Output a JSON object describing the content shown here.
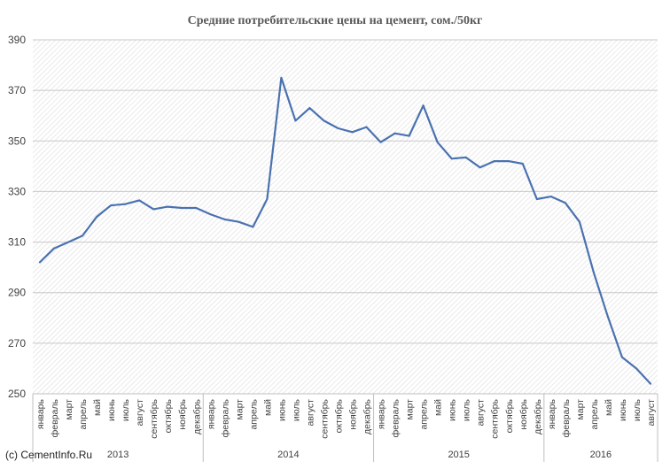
{
  "chart_data": {
    "type": "line",
    "title": "Средние потребительские цены на цемент, сом./50кг",
    "ylim": [
      250,
      390
    ],
    "yticks": [
      250,
      270,
      290,
      310,
      330,
      350,
      370,
      390
    ],
    "grid": true,
    "color": "#4a72b0",
    "categories": [
      "январь",
      "февраль",
      "март",
      "апрель",
      "май",
      "июнь",
      "июль",
      "август",
      "сентябрь",
      "октябрь",
      "ноябрь",
      "декабрь",
      "январь",
      "февраль",
      "март",
      "апрель",
      "май",
      "июнь",
      "июль",
      "август",
      "сентябрь",
      "октябрь",
      "ноябрь",
      "декабрь",
      "январь",
      "февраль",
      "март",
      "апрель",
      "май",
      "июнь",
      "июль",
      "август",
      "сентябрь",
      "октябрь",
      "ноябрь",
      "декабрь",
      "январь",
      "февраль",
      "март",
      "апрель",
      "май",
      "июнь",
      "июль",
      "август"
    ],
    "groups": [
      {
        "label": "2013",
        "count": 12
      },
      {
        "label": "2014",
        "count": 12
      },
      {
        "label": "2015",
        "count": 12
      },
      {
        "label": "2016",
        "count": 8
      }
    ],
    "values": [
      302,
      307.5,
      310,
      312.5,
      320,
      324.5,
      325,
      326.5,
      323,
      324,
      323.5,
      323.5,
      321,
      319,
      318,
      316,
      327,
      375,
      358,
      363,
      358,
      355,
      353.5,
      355.5,
      349.5,
      353,
      352,
      364,
      349.5,
      343,
      343.5,
      339.5,
      342,
      342,
      341,
      327,
      328,
      325.5,
      318,
      298,
      280.5,
      264.5,
      260,
      254
    ]
  },
  "credit": "(c) CementInfo.Ru"
}
